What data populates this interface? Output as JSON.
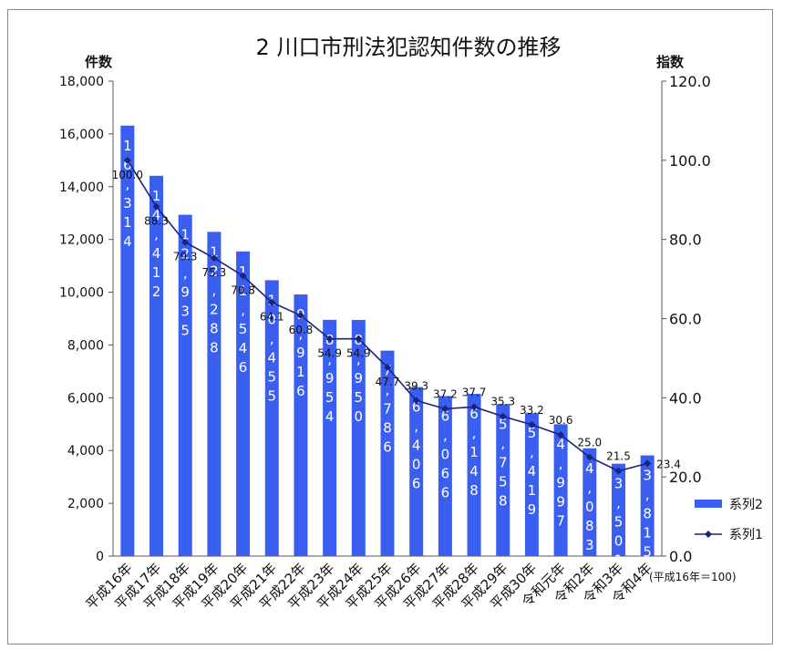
{
  "chart_data": {
    "type": "bar",
    "title": "2 川口市刑法犯認知件数の推移",
    "ylabel_left": "件数",
    "ylabel_right": "指数",
    "note": "(平成16年＝100)",
    "categories": [
      "平成16年",
      "平成17年",
      "平成18年",
      "平成19年",
      "平成20年",
      "平成21年",
      "平成22年",
      "平成23年",
      "平成24年",
      "平成25年",
      "平成26年",
      "平成27年",
      "平成28年",
      "平成29年",
      "平成30年",
      "令和元年",
      "令和2年",
      "令和3年",
      "令和4年"
    ],
    "left_axis": {
      "ylim": [
        0,
        18000
      ],
      "ticks": [
        "0",
        "2,000",
        "4,000",
        "6,000",
        "8,000",
        "10,000",
        "12,000",
        "14,000",
        "16,000",
        "18,000"
      ]
    },
    "right_axis": {
      "ylim": [
        0,
        120
      ],
      "ticks": [
        "0.0",
        "20.0",
        "40.0",
        "60.0",
        "80.0",
        "100.0",
        "120.0"
      ]
    },
    "series": [
      {
        "name": "系列2",
        "type": "bar",
        "color": "#3a5ff0",
        "values": [
          16314,
          14412,
          12935,
          12288,
          11546,
          10455,
          9916,
          8954,
          8950,
          7786,
          6406,
          6066,
          6148,
          5758,
          5419,
          4997,
          4083,
          3501,
          3815
        ],
        "labels": [
          "16,314",
          "14,412",
          "12,935",
          "12,288",
          "11,546",
          "10,455",
          "9,916",
          "8,954",
          "8,950",
          "7,786",
          "6,406",
          "6,066",
          "6,148",
          "5,758",
          "5,419",
          "4,997",
          "4,083",
          "3,501",
          "3,815"
        ]
      },
      {
        "name": "系列1",
        "type": "line",
        "axis": "right",
        "color": "#1a237e",
        "values": [
          100.0,
          88.3,
          79.3,
          75.3,
          70.8,
          64.1,
          60.8,
          54.9,
          54.9,
          47.7,
          39.3,
          37.2,
          37.7,
          35.3,
          33.2,
          30.6,
          25.0,
          21.5,
          23.4
        ],
        "labels": [
          "100.0",
          "88.3",
          "79.3",
          "75.3",
          "70.8",
          "64.1",
          "60.8",
          "54.9",
          "54.9",
          "47.7",
          "39.3",
          "37.2",
          "37.7",
          "35.3",
          "33.2",
          "30.6",
          "25.0",
          "21.5",
          "23.4"
        ]
      }
    ],
    "legend": {
      "position": "right"
    },
    "grid": false
  }
}
